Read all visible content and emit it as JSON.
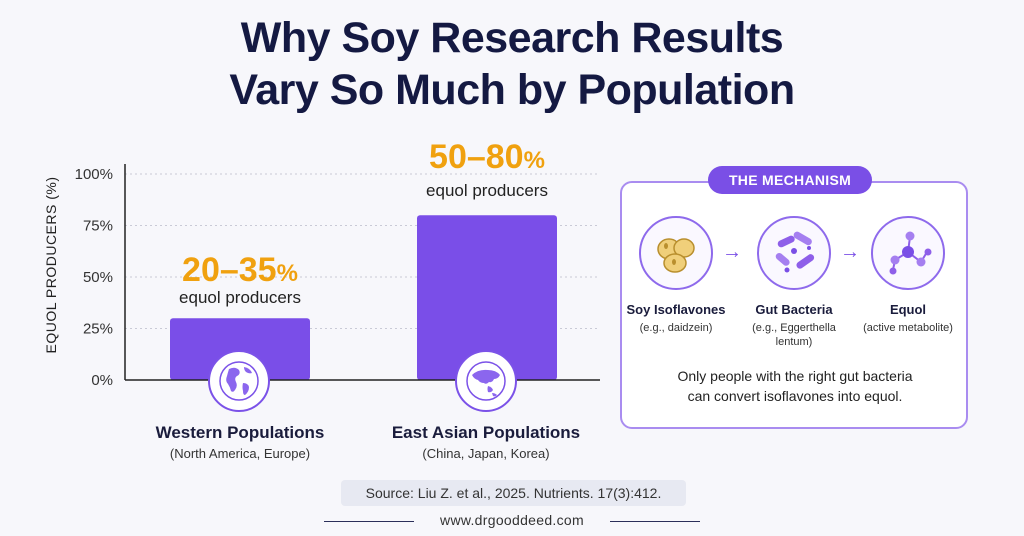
{
  "title_line1": "Why Soy Research Results",
  "title_line2": "Vary So Much by Population",
  "chart_data": {
    "type": "bar",
    "title": "",
    "ylabel": "EQUOL PRODUCERS (%)",
    "ylim": [
      0,
      100
    ],
    "yticks": [
      0,
      25,
      50,
      75,
      100
    ],
    "ytick_labels": [
      "0%",
      "25%",
      "50%",
      "75%",
      "100%"
    ],
    "grid": "dashed-horizontal",
    "bar_color": "#7a4ee8",
    "categories": [
      "Western Populations",
      "East Asian Populations"
    ],
    "category_subtitles": [
      "(North America, Europe)",
      "(China, Japan, Korea)"
    ],
    "values": [
      30,
      80
    ],
    "range_labels": [
      {
        "main": "20–35",
        "unit": "%",
        "caption": "equol producers"
      },
      {
        "main": "50–80",
        "unit": "%",
        "caption": "equol producers"
      }
    ],
    "icons": [
      "globe-americas-icon",
      "globe-asia-icon"
    ]
  },
  "mechanism": {
    "badge": "THE MECHANISM",
    "steps": [
      {
        "name": "Soy Isoflavones",
        "sub_line1": "(e.g., daidzein)",
        "sub_line2": "",
        "icon": "soybeans-icon"
      },
      {
        "name": "Gut Bacteria",
        "sub_line1": "(e.g., Eggerthella",
        "sub_line2": "lentum)",
        "icon": "bacteria-icon"
      },
      {
        "name": "Equol",
        "sub_line1": "(active metabolite)",
        "sub_line2": "",
        "icon": "molecule-icon"
      }
    ],
    "note_line1": "Only people with the right gut bacteria",
    "note_line2": "can convert isoflavones into equol."
  },
  "source": "Source: Liu Z. et al., 2025. Nutrients. 17(3):412.",
  "website": "www.drgooddeed.com",
  "colors": {
    "accent": "#7a4ee8",
    "highlight": "#f0a10f",
    "title": "#141942"
  }
}
